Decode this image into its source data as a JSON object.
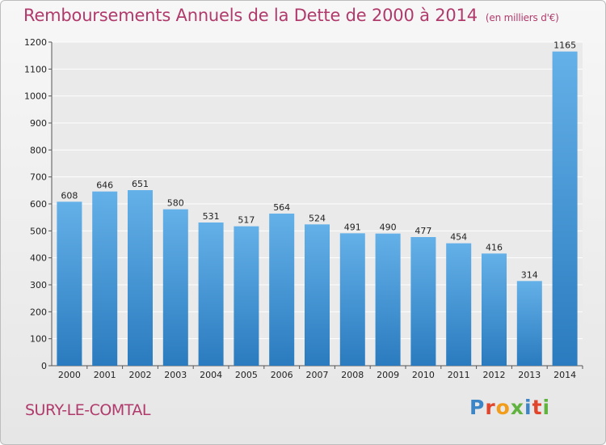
{
  "title": "Remboursements Annuels de la Dette de 2000 à 2014",
  "unit": "(en milliers d'€)",
  "commune": "SURY-LE-COMTAL",
  "logo": "Proxiti",
  "colors": {
    "bar_top": "#64b0e8",
    "bar_bottom": "#2a7bbf",
    "title": "#b03a6b",
    "logo": [
      "#3c86c8",
      "#e1462c",
      "#f29c1c",
      "#61b33f",
      "#3c86c8",
      "#e1462c",
      "#61b33f"
    ]
  },
  "chart_data": {
    "type": "bar",
    "title": "Remboursements Annuels de la Dette de 2000 à 2014",
    "categories": [
      "2000",
      "2001",
      "2002",
      "2003",
      "2004",
      "2005",
      "2006",
      "2007",
      "2008",
      "2009",
      "2010",
      "2011",
      "2012",
      "2013",
      "2014"
    ],
    "values": [
      608,
      646,
      651,
      580,
      531,
      517,
      564,
      524,
      491,
      490,
      477,
      454,
      416,
      314,
      1165
    ],
    "ylim": [
      0,
      1200
    ],
    "yticks": [
      0,
      100,
      200,
      300,
      400,
      500,
      600,
      700,
      800,
      900,
      1000,
      1100,
      1200
    ],
    "grid": true
  }
}
